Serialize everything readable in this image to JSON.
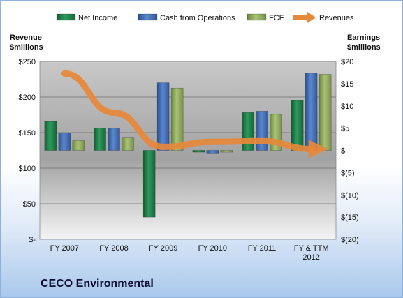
{
  "chart_data": {
    "type": "bar",
    "title": "CECO Environmental",
    "left_axis_label": [
      "Revenue",
      "$millions"
    ],
    "right_axis_label": [
      "Earnings",
      "$millions"
    ],
    "categories": [
      [
        "FY 2007"
      ],
      [
        "FY 2008"
      ],
      [
        "FY 2009"
      ],
      [
        "FY 2010"
      ],
      [
        "FY 2011"
      ],
      [
        "FY & TTM",
        "2012"
      ]
    ],
    "left_ticks": [
      "$-",
      "$50",
      "$100",
      "$150",
      "$200",
      "$250"
    ],
    "left_ylim": [
      0,
      250
    ],
    "right_ticks": [
      "$(20)",
      "$(15)",
      "$(10)",
      "$(5)",
      "$-",
      "$5",
      "$10",
      "$15",
      "$20"
    ],
    "right_ylim": [
      -20,
      20
    ],
    "legend_position": "top",
    "grid": true,
    "series": [
      {
        "name": "Net Income",
        "axis": "right",
        "color": "#1e7a45",
        "values": [
          6.5,
          5,
          -15,
          -0.4,
          8.5,
          11.2
        ]
      },
      {
        "name": "Cash from Operations",
        "axis": "right",
        "color": "#3e6bb0",
        "values": [
          3.9,
          5,
          15.2,
          -0.6,
          8.8,
          17.4
        ]
      },
      {
        "name": "FCF",
        "axis": "right",
        "color": "#8ca55a",
        "values": [
          2.2,
          2.8,
          14,
          -0.4,
          8.1,
          17.1
        ]
      },
      {
        "name": "Revenues",
        "axis": "left",
        "type": "line",
        "color": "#e7883a",
        "values": [
          233,
          178,
          130,
          137,
          138,
          127
        ]
      }
    ]
  }
}
